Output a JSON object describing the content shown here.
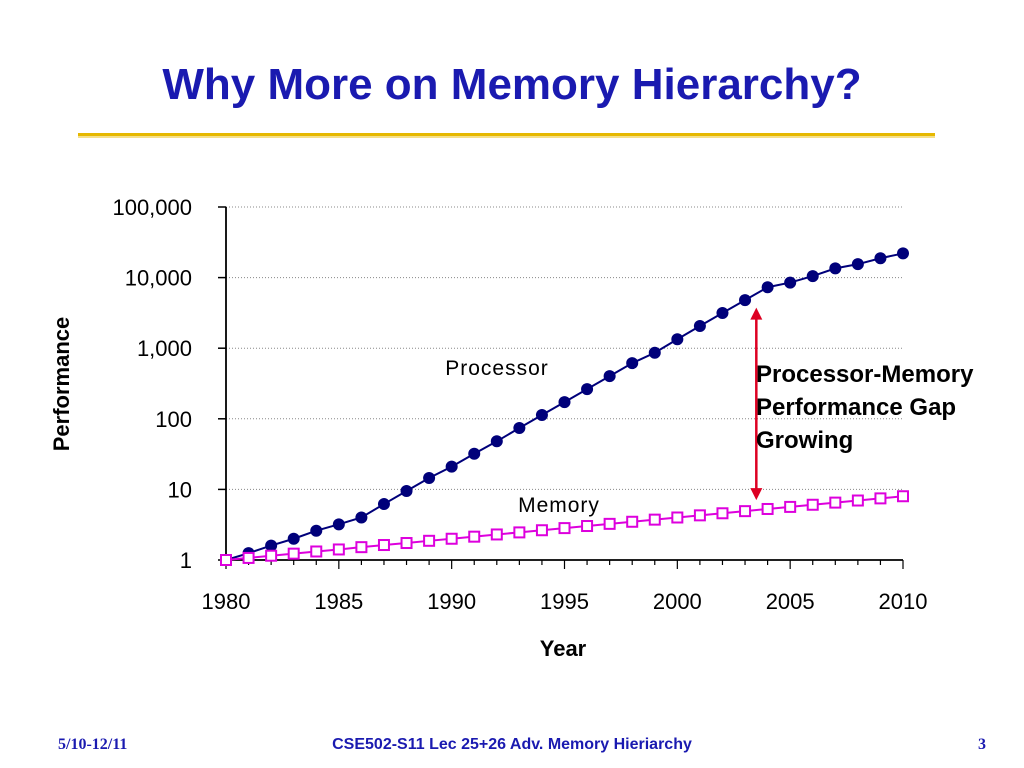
{
  "slide": {
    "title": "Why More on Memory Hierarchy?",
    "annotation_lines": [
      "Processor-Memory",
      "Performance Gap",
      "Growing"
    ],
    "footer_date": "5/10-12/11",
    "footer_course": "CSE502-S11 Lec 25+26 Adv. Memory Hieriarchy",
    "page_number": "3"
  },
  "colors": {
    "title": "#1a1ab0",
    "rule": "#e6b800",
    "processor": "#00007a",
    "memory": "#dd00dd",
    "gap_arrow": "#dd0022"
  },
  "chart_data": {
    "type": "line",
    "xlabel": "Year",
    "ylabel": "Performance",
    "y_scale": "log",
    "xlim": [
      1980,
      2010
    ],
    "ylim": [
      1,
      100000
    ],
    "x_ticks": [
      "1980",
      "1985",
      "1990",
      "1995",
      "2000",
      "2005",
      "2010"
    ],
    "y_ticks": [
      "1",
      "10",
      "100",
      "1,000",
      "10,000",
      "100,000"
    ],
    "grid": "horizontal dotted",
    "x": [
      1980,
      1981,
      1982,
      1983,
      1984,
      1985,
      1986,
      1987,
      1988,
      1989,
      1990,
      1991,
      1992,
      1993,
      1994,
      1995,
      1996,
      1997,
      1998,
      1999,
      2000,
      2001,
      2002,
      2003,
      2004,
      2005,
      2006,
      2007,
      2008,
      2009,
      2010
    ],
    "series": [
      {
        "name": "Processor",
        "marker": "filled-circle",
        "values": [
          1,
          1.25,
          1.6,
          2,
          2.6,
          3.2,
          4,
          6.2,
          9.5,
          14.5,
          21,
          32,
          48,
          74,
          113,
          172,
          263,
          402,
          614,
          862,
          1339,
          2066,
          3151,
          4800,
          7300,
          8500,
          10500,
          13500,
          15500,
          18800,
          22000
        ]
      },
      {
        "name": "Memory",
        "marker": "open-square",
        "values": [
          1,
          1.07,
          1.15,
          1.23,
          1.32,
          1.41,
          1.52,
          1.63,
          1.74,
          1.87,
          2,
          2.14,
          2.3,
          2.46,
          2.64,
          2.83,
          3.03,
          3.25,
          3.48,
          3.73,
          4,
          4.29,
          4.59,
          4.92,
          5.28,
          5.65,
          6.06,
          6.5,
          6.96,
          7.46,
          8
        ]
      }
    ],
    "gap_arrow_year": 2003.5
  }
}
